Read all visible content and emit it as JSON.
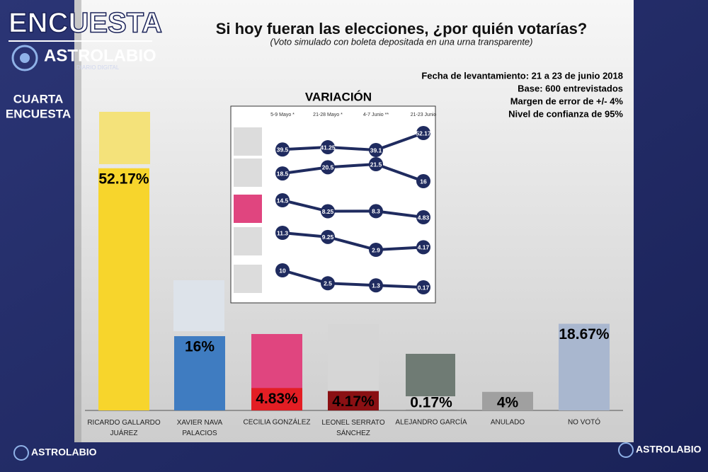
{
  "header": {
    "logo_title": "ENCUESTA",
    "logo_brand": "ASTROLABIO",
    "logo_tagline": "DIARIO DIGITAL",
    "edition": [
      "CUARTA",
      "ENCUESTA"
    ]
  },
  "chart_data": [
    {
      "type": "bar",
      "title": "Si hoy fueran las elecciones, ¿por quién votarías?",
      "subtitle": "(Voto simulado con boleta depositada en una urna transparente)",
      "annotations": [
        "Fecha de levantamiento: 21 a 23 de junio 2018",
        "Base: 600 entrevistados",
        "Margen de error de +/- 4%",
        "Nivel de confianza de 95%"
      ],
      "categories": [
        "RICARDO GALLARDO JUÁREZ",
        "XAVIER NAVA PALACIOS",
        "CECILIA GONZÁLEZ",
        "LEONEL SERRATO SÁNCHEZ",
        "ALEJANDRO GARCÍA",
        "ANULADO",
        "NO VOTÓ"
      ],
      "values": [
        52.17,
        16,
        4.83,
        4.17,
        0.17,
        4,
        18.67
      ],
      "value_labels": [
        "52.17%",
        "16%",
        "4.83%",
        "4.17%",
        "0.17%",
        "4%",
        "18.67%"
      ],
      "colors": [
        "#f7d52c",
        "#3f7cc1",
        "#e31e24",
        "#8a1013",
        "#8a8a8a",
        "#a0a0a0",
        "#a9b7cf"
      ]
    },
    {
      "type": "line",
      "title": "VARIACIÓN",
      "categories": [
        "5-9 Mayo *",
        "21-28 Mayo *",
        "4-7 Junio **",
        "21-23 Junio"
      ],
      "series": [
        {
          "color": "#1f2b5f",
          "values": [
            39.5,
            41.25,
            39.1,
            52.17
          ]
        },
        {
          "color": "#1f2b5f",
          "values": [
            18.5,
            20.5,
            21.5,
            16
          ]
        },
        {
          "color": "#1f2b5f",
          "values": [
            14.5,
            8.25,
            8.3,
            4.83
          ]
        },
        {
          "color": "#1f2b5f",
          "values": [
            11.3,
            9.25,
            2.9,
            4.17
          ]
        },
        {
          "color": "#1f2b5f",
          "values": [
            10,
            2.5,
            1.3,
            0.17
          ]
        }
      ]
    }
  ],
  "footer": [
    "ASTROLABIO",
    "ASTROLABIO"
  ]
}
